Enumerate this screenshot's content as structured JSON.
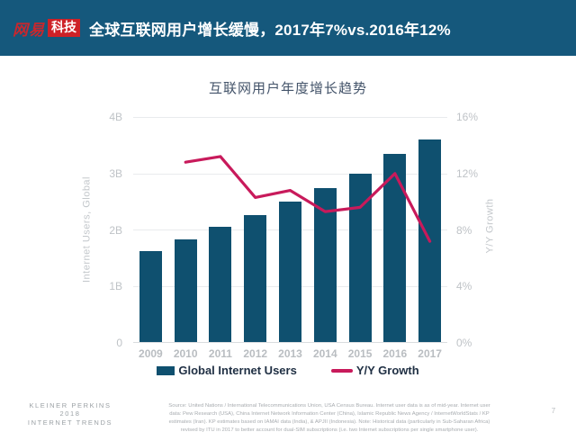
{
  "header": {
    "logo_primary": "网易",
    "logo_badge": "科技",
    "title": "全球互联网用户增长缓慢，2017年7%vs.2016年12%",
    "background_color": "#15587C",
    "logo_red": "#CE2127"
  },
  "chart_data": {
    "type": "bar",
    "subtype": "bar+line dual axis",
    "title": "互联网用户年度增长趋势",
    "categories": [
      "2009",
      "2010",
      "2011",
      "2012",
      "2013",
      "2014",
      "2015",
      "2016",
      "2017"
    ],
    "series": [
      {
        "name": "Global Internet Users",
        "type": "bar",
        "axis": "left",
        "unit": "billions",
        "color": "#0F506F",
        "values": [
          1.62,
          1.83,
          2.05,
          2.26,
          2.5,
          2.73,
          3.0,
          3.35,
          3.6
        ]
      },
      {
        "name": "Y/Y Growth",
        "type": "line",
        "axis": "right",
        "unit": "%",
        "color": "#C81A5B",
        "values": [
          null,
          12.8,
          13.2,
          10.3,
          10.8,
          9.3,
          9.6,
          12,
          7.2
        ]
      }
    ],
    "left_axis": {
      "label": "Internet Users, Global",
      "min": 0,
      "max": 4,
      "ticks": [
        "4B",
        "3B",
        "2B",
        "1B",
        "0"
      ]
    },
    "right_axis": {
      "label": "Y/Y Growth",
      "min": 0,
      "max": 16,
      "ticks": [
        "16%",
        "12%",
        "8%",
        "4%",
        "0%"
      ]
    },
    "grid": true,
    "legend_position": "bottom",
    "legend": [
      {
        "label": "Global Internet Users",
        "color": "#0F506F",
        "marker": "bar"
      },
      {
        "label": "Y/Y Growth",
        "color": "#C81A5B",
        "marker": "line"
      }
    ]
  },
  "footer": {
    "brand_line1": "KLEINER PERKINS",
    "brand_line2": "2018",
    "brand_line3": "INTERNET TRENDS",
    "source_note": "Source: United Nations / International Telecommunications Union, USA Census Bureau. Internet user data is as of mid-year. Internet user data: Pew Research (USA), China Internet Network Information Center (China), Islamic Republic News Agency / InternetWorldStats / KP estimates (Iran). KP estimates based on IAMAI data (India), & APJII (Indonesia). Note: Historical data (particularly in Sub-Saharan Africa) revised by ITU in 2017 to better account for dual-SIM subscriptions (i.e. two Internet subscriptions per single smartphone user).",
    "page_number": "7"
  }
}
